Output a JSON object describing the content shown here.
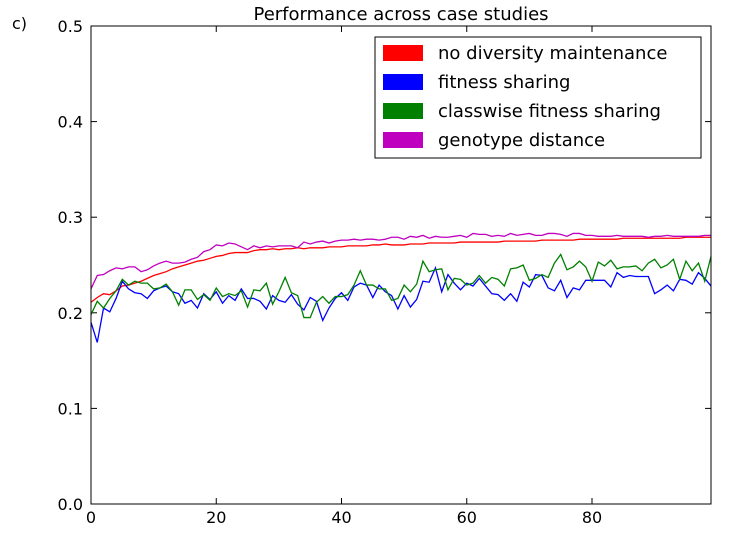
{
  "panel_label": "c)",
  "chart_data": {
    "type": "line",
    "title": "Performance across case studies",
    "xlabel": "",
    "ylabel": "",
    "xlim": [
      0,
      99
    ],
    "ylim": [
      0.0,
      0.5
    ],
    "xticks": [
      0,
      20,
      40,
      60,
      80
    ],
    "xtick_labels": [
      "0",
      "20",
      "40",
      "60",
      "80"
    ],
    "yticks": [
      0.0,
      0.1,
      0.2,
      0.3,
      0.4,
      0.5
    ],
    "ytick_labels": [
      "0.0",
      "0.1",
      "0.2",
      "0.3",
      "0.4",
      "0.5"
    ],
    "grid": false,
    "legend_position": "top-right",
    "series": [
      {
        "name": "no diversity maintenance",
        "color": "#ff0000",
        "values": [
          0.211,
          0.216,
          0.22,
          0.219,
          0.223,
          0.228,
          0.229,
          0.231,
          0.233,
          0.236,
          0.239,
          0.241,
          0.243,
          0.246,
          0.248,
          0.25,
          0.252,
          0.254,
          0.255,
          0.257,
          0.259,
          0.26,
          0.262,
          0.263,
          0.263,
          0.263,
          0.265,
          0.266,
          0.266,
          0.267,
          0.266,
          0.267,
          0.267,
          0.268,
          0.267,
          0.268,
          0.268,
          0.268,
          0.269,
          0.269,
          0.269,
          0.27,
          0.27,
          0.27,
          0.27,
          0.271,
          0.271,
          0.272,
          0.271,
          0.271,
          0.271,
          0.272,
          0.272,
          0.272,
          0.273,
          0.273,
          0.273,
          0.273,
          0.273,
          0.274,
          0.274,
          0.274,
          0.274,
          0.274,
          0.274,
          0.274,
          0.275,
          0.275,
          0.275,
          0.275,
          0.275,
          0.275,
          0.276,
          0.276,
          0.276,
          0.276,
          0.276,
          0.276,
          0.277,
          0.277,
          0.277,
          0.277,
          0.277,
          0.277,
          0.277,
          0.278,
          0.278,
          0.278,
          0.278,
          0.278,
          0.278,
          0.278,
          0.278,
          0.278,
          0.278,
          0.279,
          0.279,
          0.279,
          0.279,
          0.279
        ]
      },
      {
        "name": "fitness sharing",
        "color": "#0000ff",
        "values": [
          0.19,
          0.169,
          0.205,
          0.201,
          0.215,
          0.233,
          0.225,
          0.221,
          0.22,
          0.215,
          0.223,
          0.226,
          0.228,
          0.222,
          0.22,
          0.21,
          0.213,
          0.205,
          0.22,
          0.214,
          0.222,
          0.21,
          0.218,
          0.213,
          0.225,
          0.215,
          0.215,
          0.212,
          0.204,
          0.218,
          0.213,
          0.211,
          0.219,
          0.209,
          0.203,
          0.216,
          0.212,
          0.192,
          0.205,
          0.215,
          0.221,
          0.213,
          0.227,
          0.231,
          0.229,
          0.216,
          0.229,
          0.222,
          0.218,
          0.204,
          0.218,
          0.206,
          0.214,
          0.233,
          0.232,
          0.247,
          0.222,
          0.24,
          0.231,
          0.224,
          0.231,
          0.228,
          0.236,
          0.228,
          0.22,
          0.219,
          0.213,
          0.22,
          0.212,
          0.232,
          0.227,
          0.24,
          0.239,
          0.226,
          0.223,
          0.234,
          0.216,
          0.226,
          0.224,
          0.234,
          0.234,
          0.234,
          0.234,
          0.227,
          0.242,
          0.237,
          0.239,
          0.238,
          0.238,
          0.238,
          0.22,
          0.224,
          0.229,
          0.223,
          0.235,
          0.234,
          0.23,
          0.242,
          0.236,
          0.228
        ]
      },
      {
        "name": "classwise fitness sharing",
        "color": "#008000",
        "values": [
          0.198,
          0.212,
          0.205,
          0.215,
          0.223,
          0.235,
          0.229,
          0.233,
          0.231,
          0.231,
          0.225,
          0.226,
          0.23,
          0.222,
          0.208,
          0.224,
          0.224,
          0.214,
          0.219,
          0.213,
          0.226,
          0.217,
          0.22,
          0.218,
          0.223,
          0.206,
          0.224,
          0.223,
          0.231,
          0.209,
          0.222,
          0.237,
          0.221,
          0.218,
          0.195,
          0.195,
          0.211,
          0.217,
          0.21,
          0.217,
          0.217,
          0.219,
          0.229,
          0.244,
          0.229,
          0.229,
          0.225,
          0.225,
          0.213,
          0.215,
          0.229,
          0.222,
          0.23,
          0.254,
          0.243,
          0.245,
          0.246,
          0.224,
          0.236,
          0.235,
          0.229,
          0.231,
          0.239,
          0.231,
          0.237,
          0.235,
          0.228,
          0.246,
          0.247,
          0.25,
          0.234,
          0.236,
          0.24,
          0.237,
          0.252,
          0.261,
          0.245,
          0.248,
          0.254,
          0.248,
          0.233,
          0.253,
          0.249,
          0.255,
          0.246,
          0.248,
          0.248,
          0.249,
          0.244,
          0.252,
          0.256,
          0.247,
          0.25,
          0.256,
          0.235,
          0.254,
          0.244,
          0.252,
          0.233,
          0.259
        ]
      },
      {
        "name": "genotype distance",
        "color": "#bf00bf",
        "values": [
          0.225,
          0.239,
          0.24,
          0.244,
          0.247,
          0.246,
          0.248,
          0.248,
          0.243,
          0.245,
          0.249,
          0.252,
          0.254,
          0.252,
          0.252,
          0.253,
          0.256,
          0.258,
          0.264,
          0.266,
          0.271,
          0.27,
          0.273,
          0.272,
          0.269,
          0.266,
          0.27,
          0.268,
          0.27,
          0.269,
          0.27,
          0.27,
          0.27,
          0.268,
          0.274,
          0.272,
          0.274,
          0.275,
          0.273,
          0.275,
          0.276,
          0.276,
          0.277,
          0.276,
          0.277,
          0.277,
          0.276,
          0.277,
          0.279,
          0.279,
          0.277,
          0.28,
          0.279,
          0.281,
          0.278,
          0.28,
          0.279,
          0.279,
          0.28,
          0.281,
          0.279,
          0.283,
          0.282,
          0.282,
          0.28,
          0.281,
          0.28,
          0.283,
          0.281,
          0.282,
          0.283,
          0.281,
          0.281,
          0.283,
          0.283,
          0.282,
          0.28,
          0.283,
          0.283,
          0.281,
          0.281,
          0.28,
          0.28,
          0.28,
          0.281,
          0.28,
          0.28,
          0.28,
          0.28,
          0.279,
          0.28,
          0.28,
          0.281,
          0.28,
          0.28,
          0.28,
          0.28,
          0.28,
          0.281,
          0.281
        ]
      }
    ]
  }
}
